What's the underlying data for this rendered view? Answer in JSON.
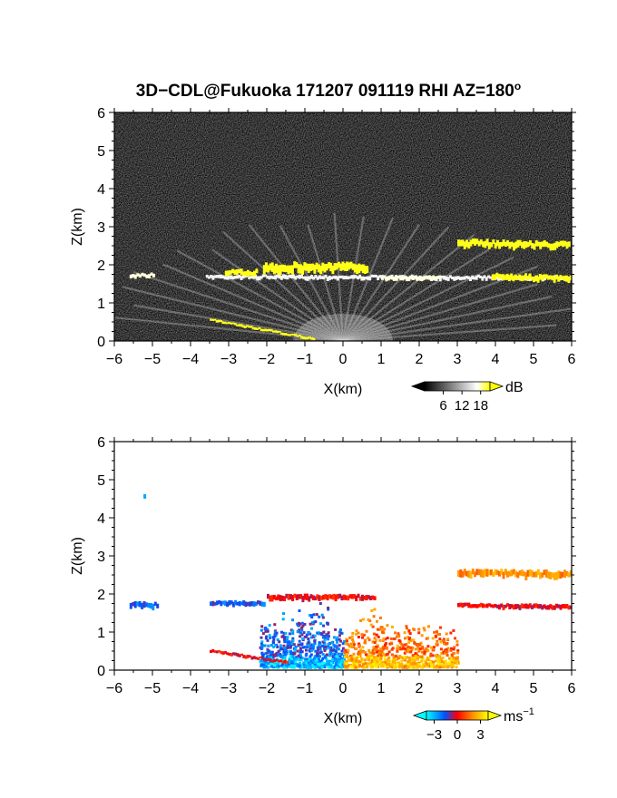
{
  "figure": {
    "title": "3D−CDL@Fukuoka 171207 091119 RHI AZ=180",
    "title_degree": "o"
  },
  "chart_data": [
    {
      "type": "heatmap",
      "variable": "backscatter",
      "xlabel": "X(km)",
      "ylabel": "Z(km)",
      "xlim": [
        -6,
        6
      ],
      "ylim": [
        0,
        6
      ],
      "xticks": [
        "−6",
        "−5",
        "−4",
        "−3",
        "−2",
        "−1",
        "0",
        "1",
        "2",
        "3",
        "4",
        "5",
        "6"
      ],
      "yticks": [
        "0",
        "1",
        "2",
        "3",
        "4",
        "5",
        "6"
      ],
      "background_color": "#2a2a2a",
      "colorbar": {
        "unit": "dB",
        "ticks": [
          "6",
          "12",
          "18"
        ],
        "tick_values": [
          6,
          12,
          18
        ],
        "range": [
          0,
          21
        ],
        "colors": [
          "#000000",
          "#ffffff",
          "#ffff00"
        ]
      },
      "features": [
        {
          "kind": "layer",
          "x": [
            -5.6,
            -5.0
          ],
          "z": [
            1.72,
            1.72
          ],
          "thickness": 0.1,
          "level": 12
        },
        {
          "kind": "layer",
          "x": [
            -3.6,
            6.0
          ],
          "z": [
            1.68,
            1.65
          ],
          "thickness": 0.1,
          "level": 10
        },
        {
          "kind": "layer",
          "x": [
            -3.1,
            -2.3
          ],
          "z": [
            1.78,
            1.78
          ],
          "thickness": 0.15,
          "level": 20
        },
        {
          "kind": "layer",
          "x": [
            -2.1,
            0.6
          ],
          "z": [
            1.92,
            1.92
          ],
          "thickness": 0.22,
          "level": 20
        },
        {
          "kind": "layer",
          "x": [
            1.0,
            2.5
          ],
          "z": [
            1.65,
            1.65
          ],
          "thickness": 0.1,
          "level": 12
        },
        {
          "kind": "layer",
          "x": [
            3.0,
            5.9
          ],
          "z": [
            2.57,
            2.5
          ],
          "thickness": 0.17,
          "level": 20
        },
        {
          "kind": "layer",
          "x": [
            3.9,
            6.0
          ],
          "z": [
            1.7,
            1.62
          ],
          "thickness": 0.14,
          "level": 20
        },
        {
          "kind": "layer",
          "x": [
            -3.5,
            -0.8
          ],
          "z": [
            0.55,
            0.05
          ],
          "thickness": 0.06,
          "level": 20
        }
      ]
    },
    {
      "type": "heatmap",
      "variable": "doppler velocity",
      "xlabel": "X(km)",
      "ylabel": "Z(km)",
      "xlim": [
        -6,
        6
      ],
      "ylim": [
        0,
        6
      ],
      "xticks": [
        "−6",
        "−5",
        "−4",
        "−3",
        "−2",
        "−1",
        "0",
        "1",
        "2",
        "3",
        "4",
        "5",
        "6"
      ],
      "yticks": [
        "0",
        "1",
        "2",
        "3",
        "4",
        "5",
        "6"
      ],
      "background_color": "#ffffff",
      "colorbar": {
        "unit": "ms",
        "unit_exponent": "−1",
        "ticks": [
          "−3",
          "0",
          "3"
        ],
        "tick_values": [
          -3,
          0,
          3
        ],
        "range": [
          -4,
          4
        ],
        "colors": [
          "#00ffff",
          "#0050ff",
          "#ff0000",
          "#ff9000",
          "#ffff00"
        ]
      },
      "features": [
        {
          "kind": "speck",
          "x": -5.2,
          "z": 4.55,
          "velocity": -3
        },
        {
          "kind": "layer",
          "x": [
            -5.6,
            -4.9
          ],
          "z": [
            1.7,
            1.7
          ],
          "thickness": 0.15,
          "velocity": -2
        },
        {
          "kind": "layer",
          "x": [
            -3.5,
            -2.1
          ],
          "z": [
            1.75,
            1.75
          ],
          "thickness": 0.12,
          "velocity": -2
        },
        {
          "kind": "region",
          "x": [
            -2.2,
            0.0
          ],
          "z": [
            0.1,
            2.0
          ],
          "velocity": -2
        },
        {
          "kind": "region",
          "x": [
            0.0,
            3.0
          ],
          "z": [
            0.1,
            1.9
          ],
          "velocity": 1.5
        },
        {
          "kind": "layer",
          "x": [
            -2.0,
            0.8
          ],
          "z": [
            1.9,
            1.9
          ],
          "thickness": 0.15,
          "velocity": 0
        },
        {
          "kind": "layer",
          "x": [
            3.0,
            6.0
          ],
          "z": [
            2.55,
            2.5
          ],
          "thickness": 0.18,
          "velocity": 2
        },
        {
          "kind": "layer",
          "x": [
            3.0,
            6.0
          ],
          "z": [
            1.7,
            1.65
          ],
          "thickness": 0.12,
          "velocity": 0
        },
        {
          "kind": "layer",
          "x": [
            -3.5,
            -1.5
          ],
          "z": [
            0.5,
            0.2
          ],
          "thickness": 0.08,
          "velocity": 0
        }
      ]
    }
  ]
}
